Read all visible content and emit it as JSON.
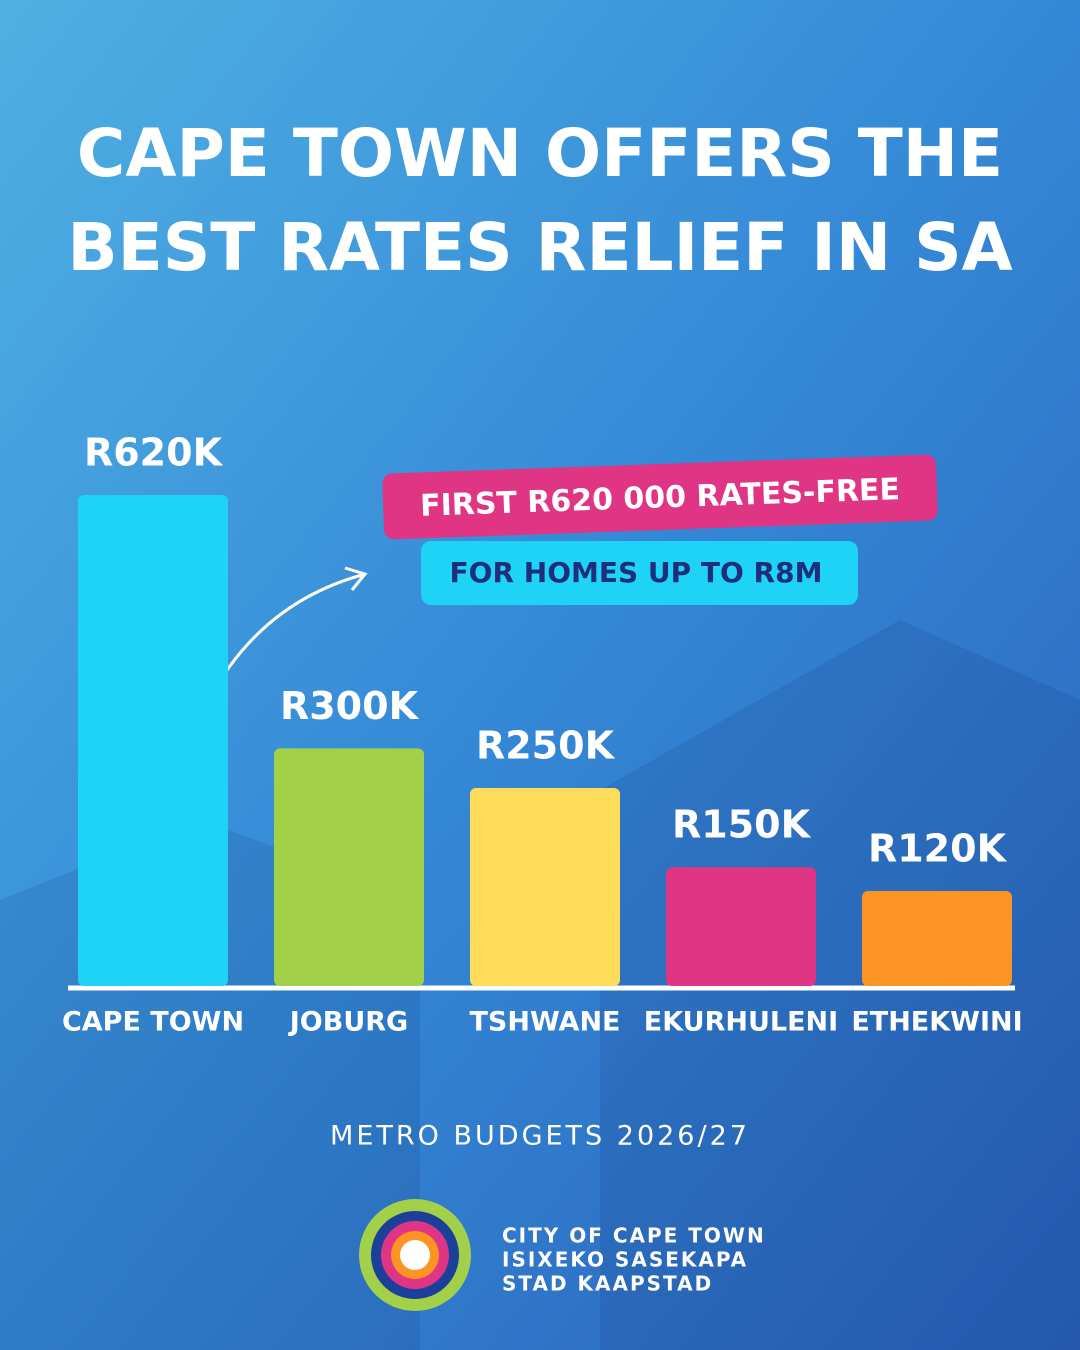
{
  "chart_data": {
    "type": "bar",
    "title": [
      "CAPE TOWN OFFERS THE",
      "BEST RATES RELIEF IN SA"
    ],
    "categories": [
      "CAPE TOWN",
      "JOBURG",
      "TSHWANE",
      "EKURHULENI",
      "ETHEKWINI"
    ],
    "values": [
      620,
      300,
      250,
      150,
      120
    ],
    "value_labels": [
      "R620K",
      "R300K",
      "R250K",
      "R150K",
      "R120K"
    ],
    "colors": [
      "#1fd3f7",
      "#a2d149",
      "#fedc5a",
      "#df3584",
      "#fb9422"
    ],
    "annotations": [
      "FIRST R620 000 RATES-FREE",
      "FOR HOMES UP TO R8M"
    ],
    "source": "METRO BUDGETS 2026/27"
  },
  "branding": {
    "lines": [
      "CITY OF CAPE TOWN",
      "ISIXEKO SASEKAPA",
      "STAD KAAPSTAD"
    ]
  }
}
